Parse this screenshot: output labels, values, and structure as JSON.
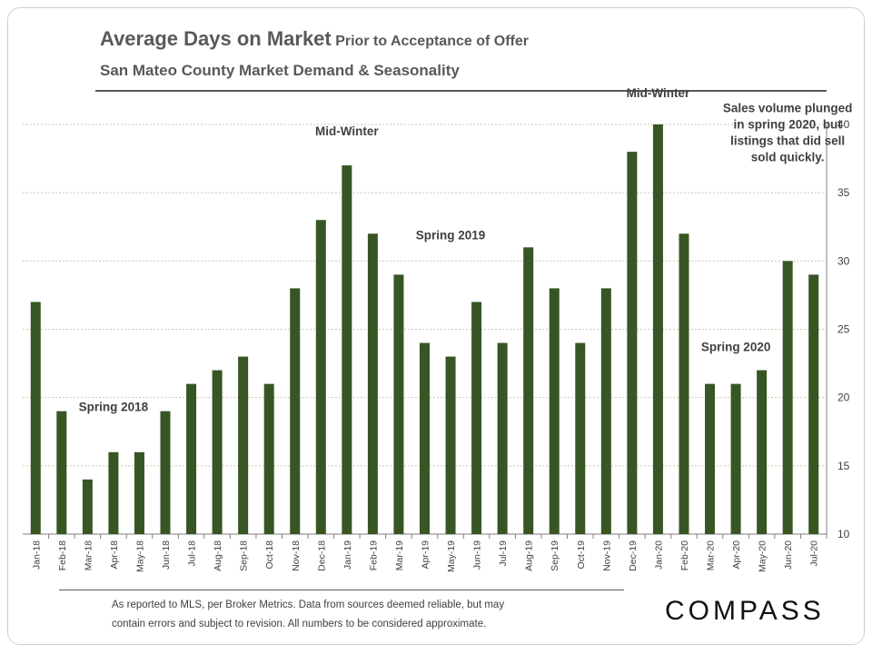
{
  "header": {
    "title_main": "Average Days on Market",
    "title_sub": "Prior to Acceptance of Offer",
    "subtitle": "San Mateo County Market Demand & Seasonality"
  },
  "footer": {
    "note_line1": "As reported to MLS, per Broker Metrics. Data from sources deemed reliable, but may",
    "note_line2": "contain errors and subject to revision. All numbers to be considered approximate.",
    "logo": "COMPASS"
  },
  "chart_data": {
    "type": "bar",
    "categories": [
      "Jan-18",
      "Feb-18",
      "Mar-18",
      "Apr-18",
      "May-18",
      "Jun-18",
      "Jul-18",
      "Aug-18",
      "Sep-18",
      "Oct-18",
      "Nov-18",
      "Dec-18",
      "Jan-19",
      "Feb-19",
      "Mar-19",
      "Apr-19",
      "May-19",
      "Jun-19",
      "Jul-19",
      "Aug-19",
      "Sep-19",
      "Oct-19",
      "Nov-19",
      "Dec-19",
      "Jan-20",
      "Feb-20",
      "Mar-20",
      "Apr-20",
      "May-20",
      "Jun-20",
      "Jul-20"
    ],
    "values": [
      27,
      19,
      14,
      16,
      16,
      19,
      21,
      22,
      23,
      21,
      28,
      33,
      37,
      32,
      29,
      24,
      23,
      27,
      24,
      31,
      28,
      24,
      28,
      38,
      40,
      32,
      21,
      21,
      22,
      30,
      29
    ],
    "ylim": [
      10,
      40
    ],
    "yticks": [
      10,
      15,
      20,
      25,
      30,
      35,
      40
    ],
    "y_axis_side": "right",
    "bar_color": "#375623",
    "grid": "dashed horizontal",
    "annotations": [
      {
        "category": "Apr-18",
        "value": 19,
        "lines": [
          "Spring 2018"
        ]
      },
      {
        "category": "Jan-19",
        "value": 39.2,
        "lines": [
          "Mid-Winter"
        ]
      },
      {
        "category": "May-19",
        "value": 31.6,
        "lines": [
          "Spring 2019"
        ]
      },
      {
        "category": "Jan-20",
        "value": 42,
        "lines": [
          "Mid-Winter"
        ]
      },
      {
        "category": "Apr-20",
        "value": 23.4,
        "lines": [
          "Spring 2020"
        ]
      },
      {
        "category": "Jun-20",
        "value": 37.3,
        "lines": [
          "Sales volume plunged",
          "in spring 2020, but",
          "listings that did sell",
          "sold quickly."
        ]
      }
    ]
  }
}
